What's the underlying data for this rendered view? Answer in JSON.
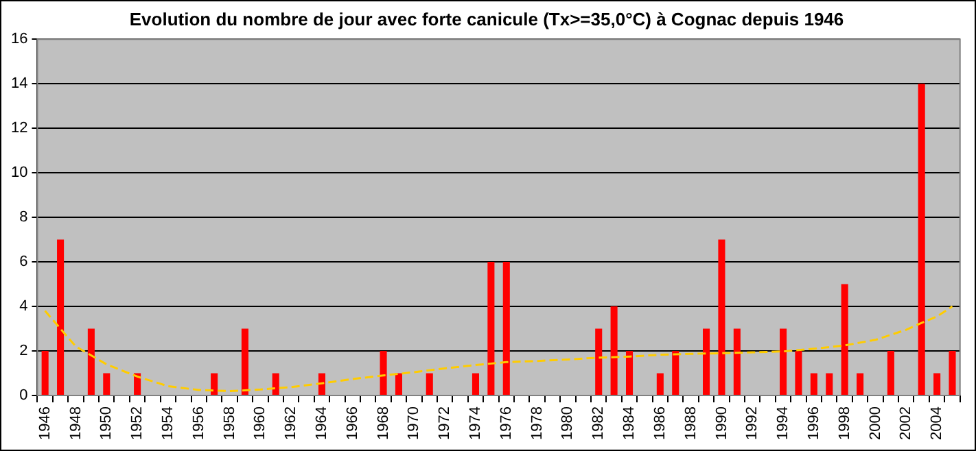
{
  "chart_data": {
    "type": "bar",
    "title": "Evolution du nombre de jour avec forte canicule (Tx>=35,0°C) à Cognac depuis 1946",
    "categories": [
      "1946",
      null,
      "1948",
      null,
      "1950",
      null,
      "1952",
      null,
      "1954",
      null,
      "1956",
      null,
      "1958",
      null,
      "1960",
      null,
      "1962",
      null,
      "1964",
      null,
      "1966",
      null,
      "1968",
      null,
      "1970",
      null,
      "1972",
      null,
      "1974",
      null,
      "1976",
      null,
      "1978",
      null,
      "1980",
      null,
      "1982",
      null,
      "1984",
      null,
      "1986",
      null,
      "1988",
      null,
      "1990",
      null,
      "1992",
      null,
      "1994",
      null,
      "1996",
      null,
      "1998",
      null,
      "2000",
      null,
      "2002",
      null,
      "2004",
      null
    ],
    "series": [
      {
        "color": "#ff0000",
        "values": [
          2,
          7,
          0,
          3,
          1,
          0,
          1,
          0,
          0,
          0,
          0,
          1,
          0,
          3,
          0,
          1,
          0,
          0,
          1,
          0,
          0,
          0,
          2,
          1,
          0,
          1,
          0,
          0,
          1,
          6,
          6,
          0,
          0,
          0,
          0,
          0,
          3,
          4,
          2,
          0,
          1,
          2,
          0,
          3,
          7,
          3,
          0,
          0,
          3,
          2,
          1,
          1,
          5,
          1,
          0,
          2,
          0,
          14,
          1,
          2
        ]
      },
      {
        "type": "line",
        "color": "#ffcc00",
        "line_style": "dashed",
        "marker": "none",
        "values": [
          3.8,
          null,
          2.2,
          null,
          1.4,
          null,
          0.85,
          null,
          0.42,
          null,
          0.25,
          null,
          0.2,
          null,
          0.27,
          null,
          0.38,
          null,
          0.55,
          null,
          0.74,
          null,
          0.9,
          null,
          1.05,
          null,
          1.22,
          null,
          1.37,
          null,
          1.5,
          null,
          1.55,
          null,
          1.62,
          null,
          1.7,
          null,
          1.75,
          null,
          1.83,
          null,
          1.87,
          null,
          1.9,
          null,
          1.94,
          null,
          1.98,
          null,
          2.1,
          null,
          2.25,
          null,
          2.5,
          null,
          2.95,
          3.26,
          3.55,
          4.0
        ]
      }
    ],
    "ylim": [
      0,
      16
    ],
    "yticks": [
      0,
      2,
      4,
      6,
      8,
      10,
      12,
      14,
      16
    ],
    "grid": "y",
    "legend": false
  }
}
